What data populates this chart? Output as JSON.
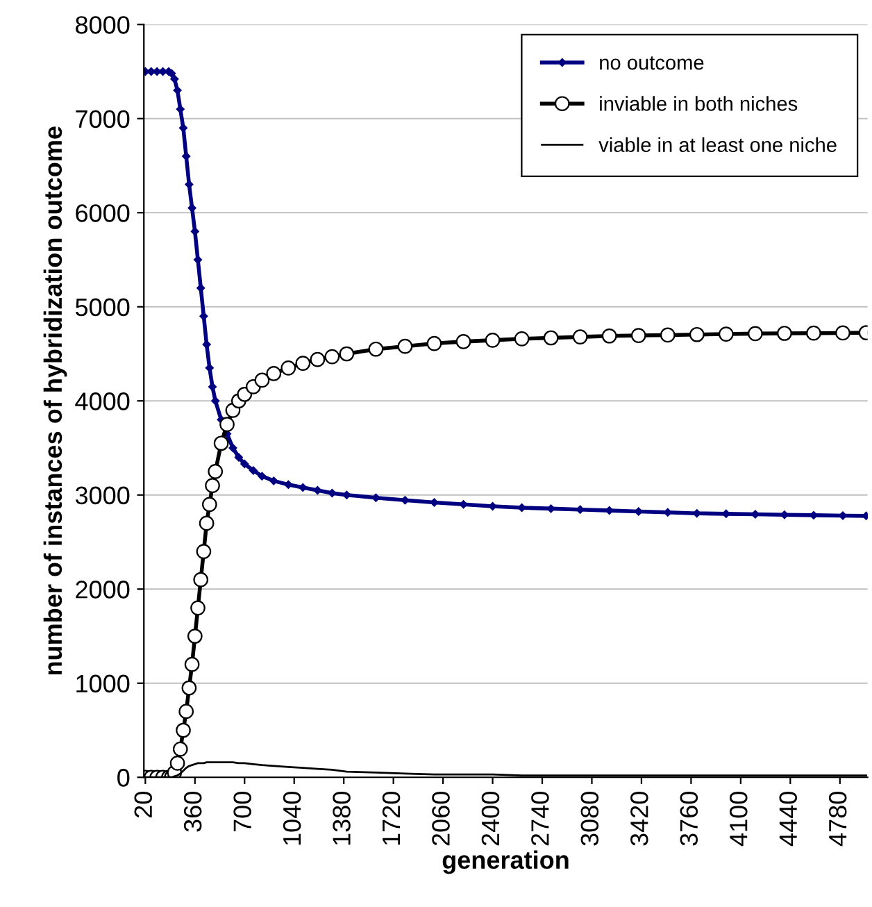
{
  "chart_data": {
    "type": "line",
    "xlabel": "generation",
    "ylabel": "number of instances of hybridization outcome",
    "x": [
      20,
      60,
      100,
      140,
      180,
      200,
      220,
      240,
      260,
      280,
      300,
      320,
      340,
      360,
      380,
      400,
      420,
      440,
      460,
      480,
      500,
      540,
      580,
      620,
      660,
      700,
      760,
      820,
      900,
      1000,
      1100,
      1200,
      1300,
      1400,
      1600,
      1800,
      2000,
      2200,
      2400,
      2600,
      2800,
      3000,
      3200,
      3400,
      3600,
      3800,
      4000,
      4200,
      4400,
      4600,
      4800,
      4960
    ],
    "series": [
      {
        "name": "no outcome",
        "color": "#000080",
        "marker": "diamond",
        "values": [
          7500,
          7500,
          7500,
          7500,
          7500,
          7480,
          7420,
          7300,
          7100,
          6900,
          6600,
          6300,
          6050,
          5800,
          5500,
          5200,
          4900,
          4600,
          4350,
          4150,
          4000,
          3800,
          3650,
          3500,
          3400,
          3330,
          3260,
          3200,
          3150,
          3110,
          3080,
          3050,
          3020,
          3000,
          2970,
          2945,
          2920,
          2900,
          2880,
          2865,
          2855,
          2845,
          2835,
          2825,
          2815,
          2805,
          2800,
          2795,
          2790,
          2785,
          2780,
          2778
        ]
      },
      {
        "name": "inviable in both niches",
        "color": "#000000",
        "marker": "circle",
        "values": [
          0,
          0,
          0,
          0,
          0,
          0,
          50,
          150,
          300,
          500,
          700,
          950,
          1200,
          1500,
          1800,
          2100,
          2400,
          2700,
          2900,
          3100,
          3250,
          3550,
          3750,
          3900,
          4000,
          4070,
          4150,
          4220,
          4290,
          4350,
          4400,
          4440,
          4470,
          4500,
          4550,
          4580,
          4610,
          4630,
          4645,
          4660,
          4670,
          4680,
          4690,
          4695,
          4700,
          4705,
          4710,
          4715,
          4718,
          4720,
          4722,
          4725
        ]
      },
      {
        "name": "viable in at least one niche",
        "color": "#000000",
        "marker": "none",
        "values": [
          0,
          0,
          0,
          0,
          0,
          0,
          10,
          20,
          40,
          70,
          100,
          120,
          130,
          140,
          150,
          150,
          150,
          160,
          160,
          160,
          160,
          160,
          160,
          160,
          150,
          150,
          140,
          130,
          120,
          110,
          100,
          90,
          80,
          60,
          50,
          40,
          30,
          30,
          30,
          20,
          20,
          20,
          20,
          20,
          20,
          20,
          20,
          20,
          20,
          20,
          20,
          20
        ]
      }
    ],
    "xlim": [
      10,
      4970
    ],
    "xticks": [
      20,
      360,
      700,
      1040,
      1380,
      1720,
      2060,
      2400,
      2740,
      3080,
      3420,
      3760,
      4100,
      4440,
      4780
    ],
    "ylim": [
      0,
      8000
    ],
    "yticks": [
      0,
      1000,
      2000,
      3000,
      4000,
      5000,
      6000,
      7000,
      8000
    ],
    "grid": "y",
    "legend": "top right"
  }
}
